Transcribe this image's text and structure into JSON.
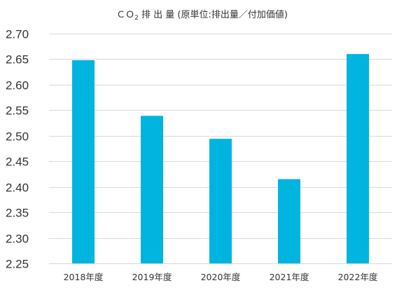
{
  "chart_data": {
    "type": "bar",
    "title_prefix": "ＣＯ",
    "title_subscript": "2",
    "title_rest": " 排 出 量 (原単位:排出量／付加価値)",
    "categories": [
      "2018年度",
      "2019年度",
      "2020年度",
      "2021年度",
      "2022年度"
    ],
    "values": [
      2.648,
      2.539,
      2.494,
      2.415,
      2.66
    ],
    "ylim": [
      2.25,
      2.7
    ],
    "yticks": [
      "2.70",
      "2.65",
      "2.60",
      "2.55",
      "2.50",
      "2.45",
      "2.40",
      "2.35",
      "2.30",
      "2.25"
    ],
    "grid": true,
    "bar_color": "#00b4e0",
    "grid_color": "#d9d9d9"
  }
}
